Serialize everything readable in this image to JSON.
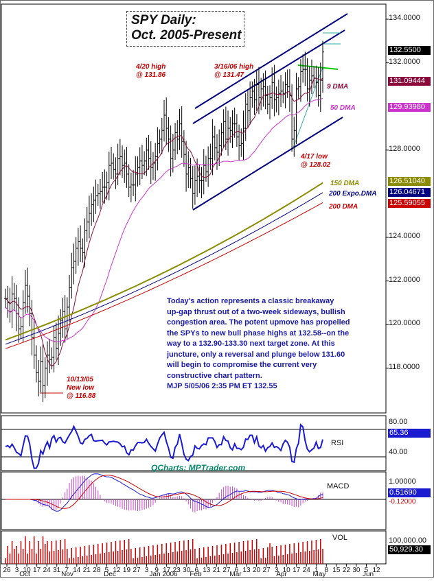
{
  "title": {
    "line1": "SPY Daily:",
    "line2": "Oct. 2005-Present"
  },
  "commentary": {
    "lines": [
      "Today's action represents a classic breakaway",
      "up-gap thrust out of a two-week sideways, bullish",
      "congestion area. The potent upmove has propelled",
      "the SPYs to new bull phase highs at 132.58--on the",
      "way to a 132.90-133.30 next target zone. At this",
      "juncture, only a reversal and plunge below 131.60",
      "will begin to compromise the current very",
      "constructive chart pattern.",
      "MJP  5/05/06  2:35 PM ET  132.55"
    ]
  },
  "annotations": {
    "high_420": {
      "line1": "4/20 high",
      "line2": "@ 131.86"
    },
    "high_316": {
      "line1": "3/16/06 high",
      "line2": "@ 131.47"
    },
    "low_417": {
      "line1": "4/17 low",
      "line2": "@ 128.02"
    },
    "low_1013": {
      "line1": "10/13/05",
      "line2": "New low",
      "line3": "@ 116.88"
    }
  },
  "ma_labels": {
    "dma9": "9 DMA",
    "dma50": "50 DMA",
    "dma150": "150 DMA",
    "ema200": "200 Expo.DMA",
    "dma200": "200 DMA"
  },
  "price_boxes": {
    "last": "132.5500",
    "dma9": "131.09444",
    "dma50": "129.93980",
    "dma150": "126.51040",
    "ema200": "126.04671",
    "dma200": "125.59055"
  },
  "panel_labels": {
    "rsi": "RSI",
    "macd": "MACD",
    "vol": "VOL",
    "rsi_80": "80.00",
    "rsi_40": "40.00",
    "rsi_value": "65.36",
    "macd_1": "1.00000",
    "macd_value": "0.51690",
    "macd_neg": "-0.12000",
    "vol_value": "100,000.00",
    "vol_last": "50,929.30"
  },
  "credit": "QCharts: MPTrader.com",
  "colors": {
    "price_bars": "#000000",
    "channel": "#000080",
    "dma9": "#8b0a3a",
    "dma50": "#cc33cc",
    "dma150": "#8b8b00",
    "ema200": "#000080",
    "dma200": "#cc0000",
    "resistance": "#00cc00",
    "support": "#33aaaa",
    "rsi_line": "#1a1ad0",
    "macd_line": "#1a1ad0",
    "macd_signal": "#cc0000",
    "macd_hist": "#cc44cc",
    "volume": "#cc0000"
  },
  "chart_data": [
    {
      "type": "line",
      "title": "SPY Daily: Oct. 2005-Present",
      "xlabel": "",
      "ylabel": "",
      "ylim": [
        114.5,
        134.9
      ],
      "y_ticks": [
        "134.0000",
        "132.0000",
        "128.0000",
        "124.0000",
        "122.0000",
        "120.0000",
        "118.0000"
      ],
      "x_tick_labels": [
        "26",
        "3",
        "10",
        "17",
        "24",
        "31",
        "7",
        "14",
        "21",
        "28",
        "5",
        "12",
        "19",
        "27",
        "3",
        "9",
        "17",
        "23",
        "30",
        "6",
        "13",
        "21",
        "27",
        "6",
        "13",
        "20",
        "27",
        "3",
        "10",
        "17",
        "24",
        "1",
        "8",
        "15",
        "22",
        "30",
        "5",
        "12"
      ],
      "month_labels": [
        "Oct",
        "Nov",
        "Dec",
        "Jan 2006",
        "Feb",
        "Mar",
        "Apr",
        "May",
        "Jun"
      ],
      "grid": false,
      "series_ohlc_closes": [
        121.2,
        121.0,
        120.6,
        121.4,
        121.2,
        120.5,
        119.8,
        119.9,
        121.0,
        121.8,
        121.3,
        120.5,
        119.4,
        118.6,
        117.8,
        117.4,
        118.3,
        117.2,
        118.0,
        118.6,
        118.4,
        118.5,
        119.4,
        118.9,
        119.6,
        120.2,
        120.6,
        119.8,
        120.8,
        121.7,
        122.6,
        122.9,
        123.5,
        123.8,
        123.5,
        123.3,
        124.3,
        124.7,
        125.1,
        125.5,
        125.7,
        125.9,
        126.0,
        126.1,
        126.3,
        126.3,
        126.5,
        127.3,
        127.4,
        127.1,
        126.9,
        127.6,
        127.7,
        127.3,
        127.4,
        126.9,
        126.3,
        126.4,
        126.4,
        126.9,
        127.2,
        127.5,
        127.3,
        127.5,
        128.0,
        127.6,
        127.2,
        127.4,
        127.7,
        128.3,
        128.5,
        128.9,
        129.6,
        129.0,
        128.5,
        127.6,
        128.0,
        128.8,
        128.5,
        129.2,
        128.4,
        127.8,
        126.9,
        127.2,
        126.7,
        126.0,
        126.6,
        126.8,
        126.6,
        126.6,
        127.3,
        127.0,
        127.6,
        127.6,
        128.6,
        128.1,
        127.9,
        128.2,
        128.8,
        129.3,
        128.5,
        129.0,
        128.9,
        129.2,
        129.2,
        128.6,
        128.2,
        128.3,
        129.0,
        130.1,
        129.8,
        130.4,
        130.7,
        130.3,
        131.0,
        130.4,
        130.8,
        130.9,
        130.5,
        130.1,
        130.4,
        131.1,
        130.3,
        130.4,
        130.6,
        130.7,
        130.6,
        131.0,
        130.9,
        130.5,
        128.5,
        128.9,
        130.8,
        130.9,
        131.6,
        131.7,
        131.7,
        130.8,
        131.2,
        131.4,
        131.3,
        131.1,
        130.5,
        131.2,
        132.5
      ],
      "series": [
        {
          "name": "9 DMA",
          "last": 131.09
        },
        {
          "name": "50 DMA",
          "last": 129.94
        },
        {
          "name": "150 DMA",
          "last": 126.51
        },
        {
          "name": "200 Expo.DMA",
          "last": 126.05
        },
        {
          "name": "200 DMA",
          "last": 125.59
        }
      ]
    },
    {
      "type": "line",
      "title": "",
      "series": [
        {
          "name": "RSI",
          "last": 65.36
        }
      ],
      "ylim": [
        20,
        100
      ],
      "y_ticks": [
        "80.00",
        "40.00"
      ]
    },
    {
      "type": "line",
      "title": "",
      "series": [
        {
          "name": "MACD",
          "last": 0.5169
        }
      ],
      "y_ticks": [
        "1.00000",
        "-0.12000"
      ]
    },
    {
      "type": "bar",
      "title": "",
      "series": [
        {
          "name": "VOL",
          "last": 50929.3
        }
      ],
      "y_ticks": [
        "100,000.00"
      ]
    }
  ]
}
